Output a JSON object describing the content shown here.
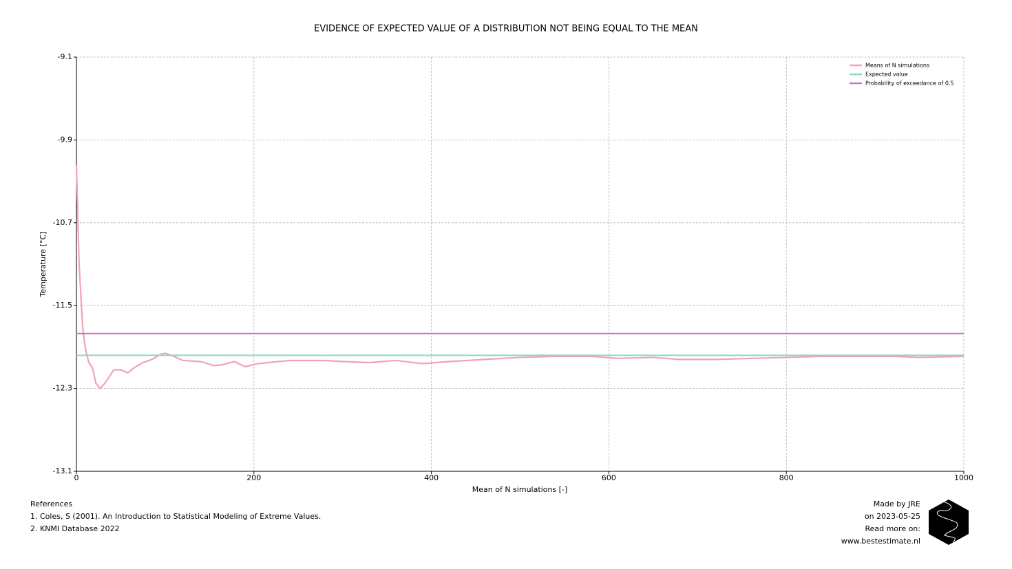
{
  "chart_data": {
    "type": "line",
    "title": "EVIDENCE OF EXPECTED VALUE OF A DISTRIBUTION NOT BEING EQUAL TO THE MEAN",
    "xlabel": "Mean of N simulations [-]",
    "ylabel": "Temperature [°C]",
    "xlim": [
      0,
      1000
    ],
    "xticks": [
      0,
      200,
      400,
      600,
      800,
      1000
    ],
    "ylim": [
      -13.1,
      -9.1
    ],
    "yticks": [
      -9.1,
      -9.9,
      -10.7,
      -11.5,
      -12.3,
      -13.1
    ],
    "grid": true,
    "legend": "upper right",
    "series": [
      {
        "name": "Means of N simulations",
        "color": "#f4a0b8",
        "x": [
          0,
          3,
          5,
          7,
          9,
          11,
          14,
          18,
          22,
          27,
          32,
          36,
          42,
          50,
          58,
          65,
          75,
          85,
          95,
          100,
          110,
          120,
          140,
          155,
          165,
          178,
          190,
          205,
          240,
          280,
          300,
          330,
          360,
          390,
          420,
          460,
          500,
          540,
          580,
          610,
          650,
          680,
          720,
          760,
          800,
          840,
          880,
          920,
          950,
          1000
        ],
        "values": [
          -10.14,
          -11.1,
          -11.4,
          -11.7,
          -11.85,
          -11.95,
          -12.05,
          -12.1,
          -12.25,
          -12.3,
          -12.25,
          -12.2,
          -12.12,
          -12.12,
          -12.15,
          -12.1,
          -12.05,
          -12.02,
          -11.97,
          -11.96,
          -11.99,
          -12.03,
          -12.04,
          -12.08,
          -12.07,
          -12.04,
          -12.09,
          -12.06,
          -12.03,
          -12.03,
          -12.04,
          -12.05,
          -12.03,
          -12.06,
          -12.04,
          -12.02,
          -12.0,
          -11.99,
          -11.99,
          -12.01,
          -12.0,
          -12.02,
          -12.02,
          -12.01,
          -12.0,
          -11.99,
          -11.99,
          -11.99,
          -12.0,
          -11.99
        ]
      },
      {
        "name": "Expected value",
        "color": "#8fd6cc",
        "x": [
          0,
          1000
        ],
        "values": [
          -11.98,
          -11.98
        ]
      },
      {
        "name": "Probability of exceedance of 0.5",
        "color": "#c77bb8",
        "x": [
          0,
          1000
        ],
        "values": [
          -11.77,
          -11.77
        ]
      }
    ]
  },
  "footer": {
    "references": [
      "References",
      "1. Coles, S (2001). An Introduction to Statistical Modeling of Extreme Values.",
      "2. KNMI Database 2022"
    ],
    "credits": [
      "Made by JRE",
      "on 2023-05-25",
      "Read more on:",
      "www.bestestimate.nl"
    ]
  }
}
